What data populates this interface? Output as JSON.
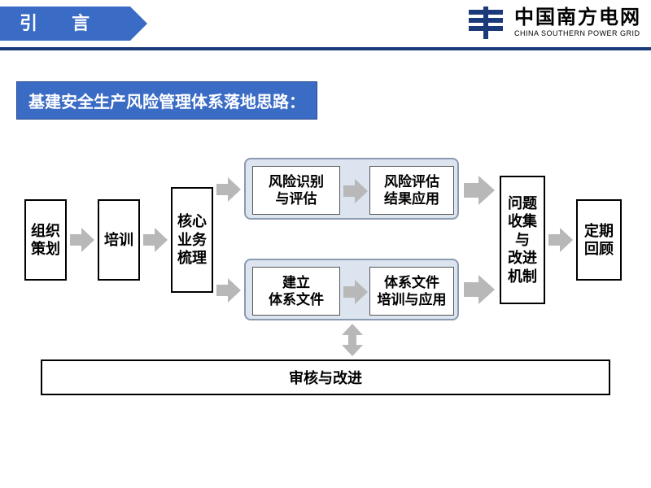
{
  "header": {
    "tab": "引    言",
    "logo_cn": "中国南方电网",
    "logo_en": "CHINA SOUTHERN POWER GRID"
  },
  "subtitle": "基建安全生产风险管理体系落地思路：",
  "colors": {
    "accent": "#3a6bc5",
    "border_dark": "#1a3a7a",
    "group_bg": "#dbe4ef",
    "group_border": "#8a9ab0",
    "arrow": "#b8b8b8"
  },
  "flow": {
    "n1": "组织\n策划",
    "n2": "培训",
    "n3": "核心\n业务\n梳理",
    "g1a": "风险识别\n与评估",
    "g1b": "风险评估\n结果应用",
    "g2a": "建立\n体系文件",
    "g2b": "体系文件\n培训与应用",
    "n4": "问题\n收集\n与\n改进\n机制",
    "n5": "定期\n回顾",
    "bottom": "审核与改进"
  }
}
